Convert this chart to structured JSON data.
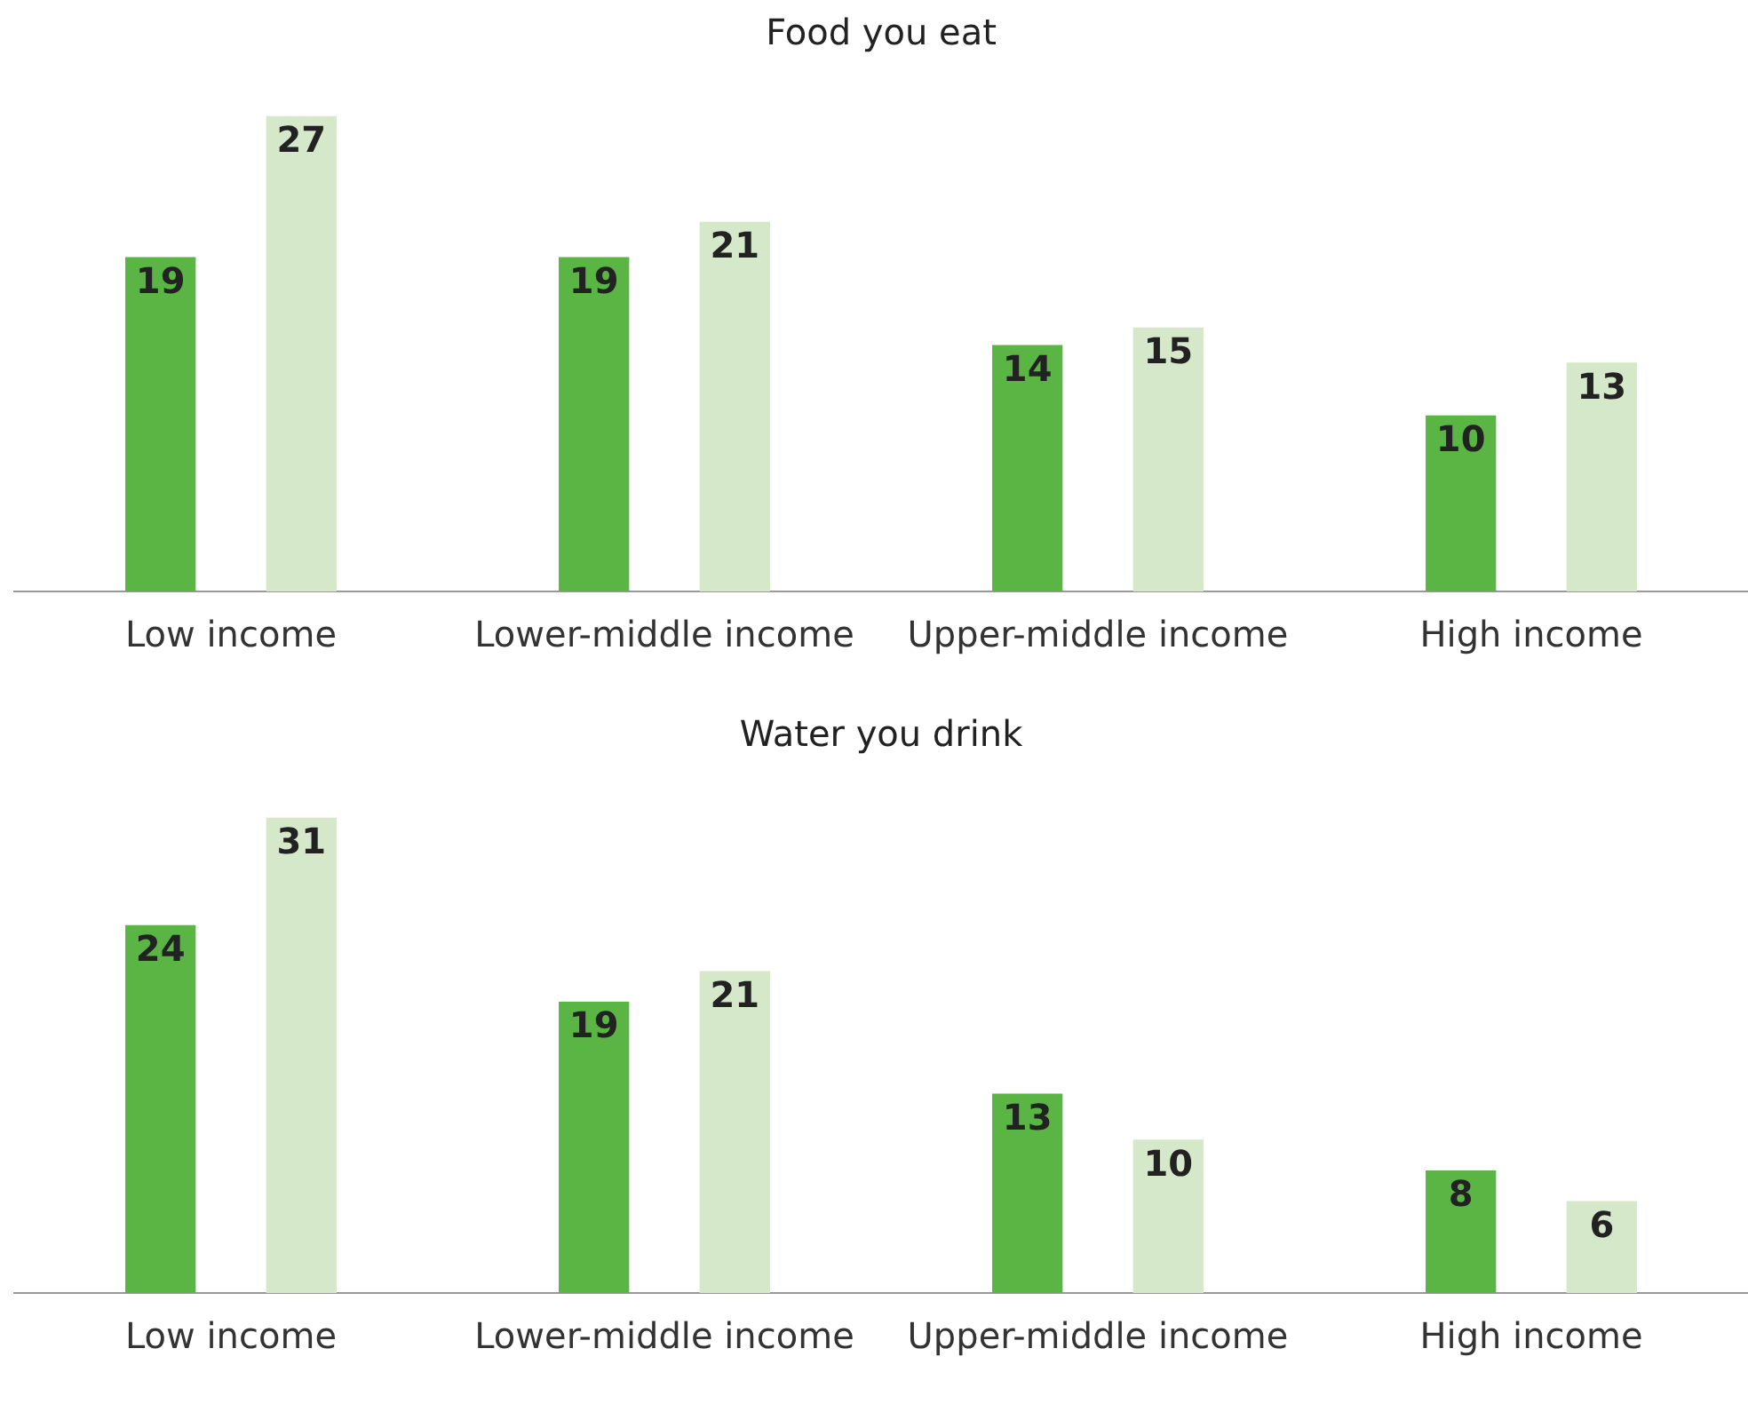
{
  "chart_data": [
    {
      "type": "bar",
      "title": "Food you eat",
      "categories": [
        "Low income",
        "Lower-middle income",
        "Upper-middle income",
        "High income"
      ],
      "series": [
        {
          "color": "#5ab545",
          "values": [
            19,
            19,
            14,
            10
          ]
        },
        {
          "color": "#d5e8c9",
          "values": [
            27,
            21,
            15,
            13
          ]
        }
      ],
      "data_labels": true,
      "grid": false,
      "legend": false,
      "tick_labels": "x"
    },
    {
      "type": "bar",
      "title": "Water you drink",
      "categories": [
        "Low income",
        "Lower-middle income",
        "Upper-middle income",
        "High income"
      ],
      "series": [
        {
          "color": "#5ab545",
          "values": [
            24,
            19,
            13,
            8
          ]
        },
        {
          "color": "#d5e8c9",
          "values": [
            31,
            21,
            10,
            6
          ]
        }
      ],
      "data_labels": true,
      "grid": false,
      "legend": false,
      "tick_labels": "x"
    }
  ]
}
